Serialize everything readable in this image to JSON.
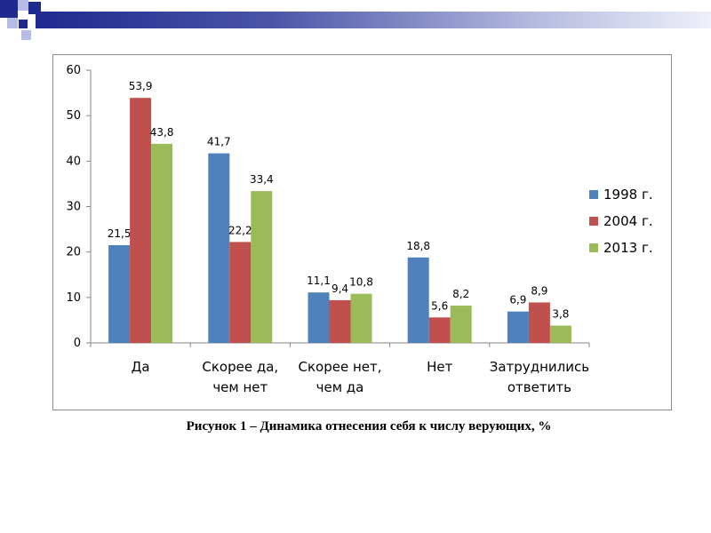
{
  "caption": "Рисунок 1 – Динамика отнесения себя к числу верующих, %",
  "colors": {
    "deco_dark": "#1e2a8e",
    "deco_light": "#b7bce6",
    "series": [
      "#4f81bd",
      "#c0504d",
      "#9bbb59"
    ]
  },
  "chart_data": {
    "type": "bar",
    "categories": [
      [
        "Да"
      ],
      [
        "Скорее да,",
        "чем нет"
      ],
      [
        "Скорее нет,",
        "чем да"
      ],
      [
        "Нет"
      ],
      [
        "Затруднились",
        "ответить"
      ]
    ],
    "series": [
      {
        "name": "1998 г.",
        "values": [
          21.5,
          41.7,
          11.1,
          18.8,
          6.9
        ],
        "labels": [
          "21,5",
          "41,7",
          "11,1",
          "18,8",
          "6,9"
        ]
      },
      {
        "name": "2004 г.",
        "values": [
          53.9,
          22.2,
          9.4,
          5.6,
          8.9
        ],
        "labels": [
          "53,9",
          "22,2",
          "9,4",
          "5,6",
          "8,9"
        ]
      },
      {
        "name": "2013 г.",
        "values": [
          43.8,
          33.4,
          10.8,
          8.2,
          3.8
        ],
        "labels": [
          "43,8",
          "33,4",
          "10,8",
          "8,2",
          "3,8"
        ]
      }
    ],
    "yticks": [
      "0",
      "10",
      "20",
      "30",
      "40",
      "50",
      "60"
    ],
    "ylim": [
      0,
      60
    ],
    "grid": false,
    "legend": "right",
    "title": "",
    "xlabel": "",
    "ylabel": ""
  }
}
